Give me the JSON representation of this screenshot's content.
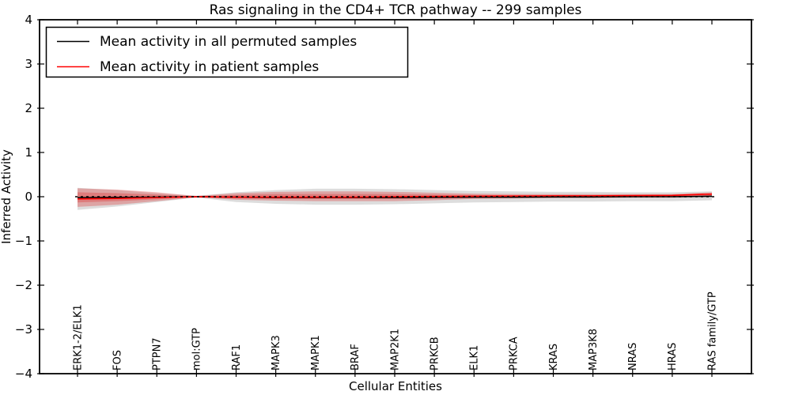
{
  "title": "Ras signaling in the CD4+ TCR pathway -- 299 samples",
  "legend": {
    "entries": [
      {
        "label": "Mean activity in all permuted samples",
        "color": "#000000"
      },
      {
        "label": "Mean activity in patient samples",
        "color": "#ff0000"
      }
    ]
  },
  "colors": {
    "frame": "#000000",
    "permuted_line": "#000000",
    "patient_line": "#ff0000",
    "permuted_band": "#646464",
    "patient_band": "#dd2020",
    "zero_line": "#000000"
  },
  "chart_data": {
    "type": "line",
    "title": "Ras signaling in the CD4+ TCR pathway -- 299 samples",
    "xlabel": "Cellular Entities",
    "ylabel": "Inferred Activity",
    "ylim": [
      -4,
      4
    ],
    "yticks": [
      -4,
      -3,
      -2,
      -1,
      0,
      1,
      2,
      3,
      4
    ],
    "ytick_labels": [
      "−4",
      "−3",
      "−2",
      "−1",
      "0",
      "1",
      "2",
      "3",
      "4"
    ],
    "grid": false,
    "legend_position": "upper left",
    "categories": [
      "ERK1-2/ELK1",
      "FOS",
      "PTPN7",
      "mol:GTP",
      "RAF1",
      "MAPK3",
      "MAPK1",
      "BRAF",
      "MAP2K1",
      "PRKCB",
      "ELK1",
      "PRKCA",
      "KRAS",
      "MAP3K8",
      "NRAS",
      "HRAS",
      "RAS family/GTP"
    ],
    "series": [
      {
        "name": "Mean activity in all permuted samples",
        "color": "#000000",
        "values": [
          -0.02,
          -0.015,
          -0.01,
          0.0,
          -0.01,
          -0.02,
          -0.02,
          -0.02,
          -0.02,
          -0.015,
          -0.01,
          -0.01,
          -0.005,
          -0.005,
          0.0,
          0.0,
          0.01
        ]
      },
      {
        "name": "Mean activity in patient samples",
        "color": "#ff0000",
        "values": [
          -0.05,
          -0.04,
          -0.02,
          0.0,
          -0.01,
          -0.01,
          -0.01,
          -0.01,
          0.0,
          0.005,
          0.01,
          0.015,
          0.02,
          0.02,
          0.025,
          0.03,
          0.06
        ]
      }
    ],
    "bands": [
      {
        "name": "permuted-samples-range",
        "color": "#646464",
        "opacity": 0.22,
        "upper": [
          0.2,
          0.15,
          0.08,
          0.02,
          0.1,
          0.15,
          0.18,
          0.18,
          0.17,
          0.15,
          0.13,
          0.12,
          0.11,
          0.11,
          0.1,
          0.1,
          0.12
        ],
        "lower": [
          -0.3,
          -0.22,
          -0.12,
          -0.02,
          -0.12,
          -0.16,
          -0.18,
          -0.18,
          -0.17,
          -0.15,
          -0.13,
          -0.12,
          -0.11,
          -0.11,
          -0.1,
          -0.1,
          -0.08
        ]
      },
      {
        "name": "patient-samples-range-outer",
        "color": "#dd2020",
        "opacity": 0.3,
        "upper": [
          0.19,
          0.16,
          0.1,
          0.015,
          0.08,
          0.11,
          0.12,
          0.12,
          0.11,
          0.09,
          0.07,
          0.06,
          0.06,
          0.06,
          0.06,
          0.06,
          0.1
        ],
        "lower": [
          -0.23,
          -0.18,
          -0.1,
          -0.015,
          -0.07,
          -0.09,
          -0.1,
          -0.1,
          -0.1,
          -0.08,
          -0.05,
          -0.04,
          -0.03,
          -0.03,
          -0.02,
          -0.02,
          0.0
        ]
      },
      {
        "name": "patient-samples-range-inner",
        "color": "#dd2020",
        "opacity": 0.3,
        "upper": [
          0.1,
          0.08,
          0.05,
          0.008,
          0.04,
          0.06,
          0.06,
          0.06,
          0.06,
          0.05,
          0.04,
          0.03,
          0.03,
          0.03,
          0.03,
          0.03,
          0.07
        ],
        "lower": [
          -0.13,
          -0.1,
          -0.06,
          -0.008,
          -0.04,
          -0.05,
          -0.05,
          -0.05,
          -0.05,
          -0.04,
          -0.03,
          -0.02,
          -0.02,
          -0.01,
          -0.01,
          -0.01,
          0.02
        ]
      }
    ],
    "zero_line": {
      "y": 0,
      "style": "dashed",
      "color": "#000000"
    }
  }
}
